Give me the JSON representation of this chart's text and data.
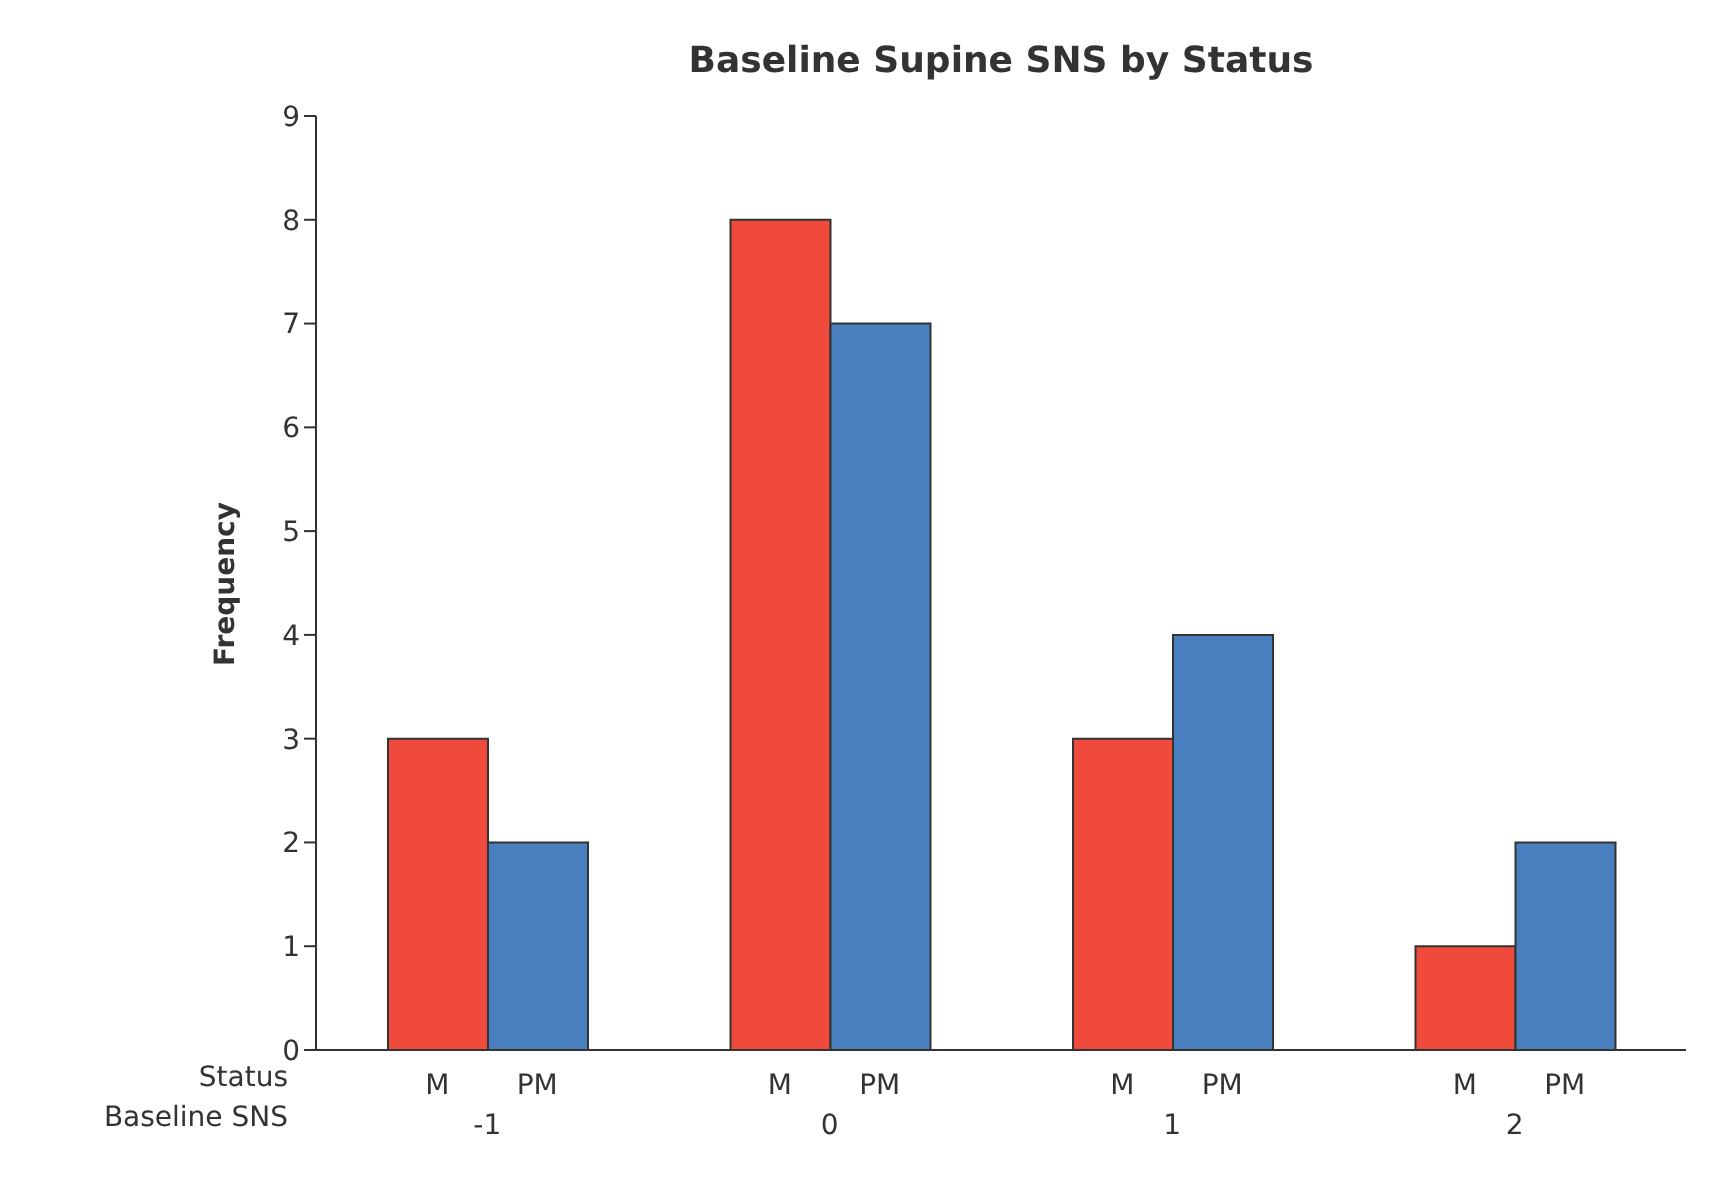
{
  "chart_data": {
    "type": "bar",
    "title": "Baseline Supine SNS by Status",
    "xlabel": "Baseline SNS",
    "ylabel": "Frequency",
    "legend_title": "Status",
    "categories": [
      "-1",
      "0",
      "1",
      "2"
    ],
    "series": [
      {
        "name": "M",
        "color": "#f04a3c",
        "values": [
          3,
          8,
          3,
          1
        ]
      },
      {
        "name": "PM",
        "color": "#4a7fbf",
        "values": [
          2,
          7,
          4,
          2
        ]
      }
    ],
    "ylim": [
      0,
      9
    ],
    "yticks": [
      0,
      1,
      2,
      3,
      4,
      5,
      6,
      7,
      8,
      9
    ],
    "grid": false,
    "legend": false
  }
}
